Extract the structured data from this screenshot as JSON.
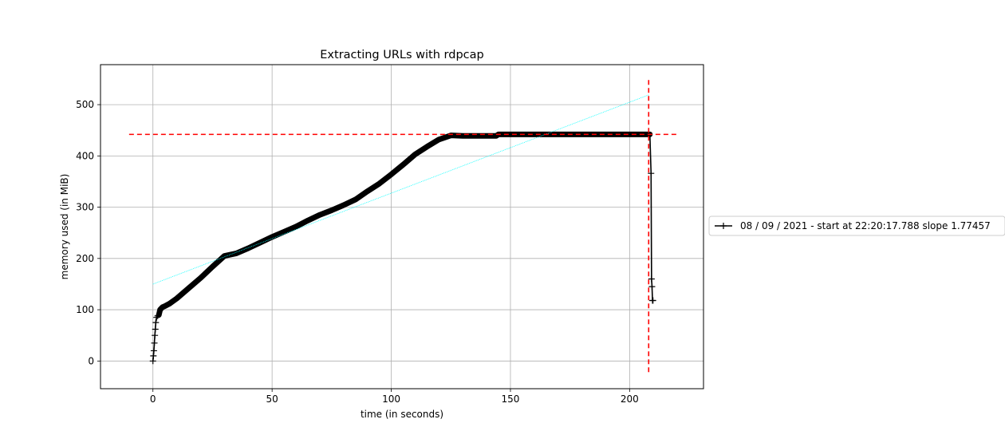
{
  "chart_data": {
    "type": "line",
    "title": "Extracting URLs with rdpcap",
    "xlabel": "time (in seconds)",
    "ylabel": "memory used (in MiB)",
    "xlim": [
      -22,
      231
    ],
    "ylim": [
      -54,
      578
    ],
    "xticks": [
      0,
      50,
      100,
      150,
      200
    ],
    "yticks": [
      0,
      100,
      200,
      300,
      400,
      500
    ],
    "grid": true,
    "legend_position": "center-right, outside plot",
    "series": [
      {
        "name": "08 / 09 / 2021 - start at 22:20:17.788 slope 1.77457",
        "color": "#000000",
        "marker": "+",
        "x": [
          0,
          0.2,
          0.4,
          0.6,
          0.8,
          1.0,
          1.2,
          1.5,
          2,
          2.5,
          3,
          4,
          5,
          7,
          10,
          15,
          20,
          25,
          30,
          35,
          40,
          45,
          50,
          55,
          60,
          65,
          70,
          75,
          80,
          85,
          90,
          95,
          100,
          105,
          110,
          115,
          120,
          125,
          130,
          135,
          140,
          144,
          145,
          150,
          160,
          170,
          180,
          190,
          200,
          205,
          208.5,
          209,
          209.2,
          209.4,
          209.6,
          209.8
        ],
        "y": [
          0,
          10,
          20,
          35,
          50,
          62,
          75,
          85,
          88,
          90,
          100,
          105,
          107,
          112,
          122,
          142,
          162,
          184,
          205,
          210,
          220,
          231,
          242,
          252,
          262,
          274,
          285,
          294,
          304,
          315,
          331,
          346,
          364,
          383,
          403,
          418,
          432,
          440,
          439,
          439,
          439,
          439,
          442,
          442,
          442,
          442,
          442,
          442,
          442,
          442,
          442,
          366,
          160,
          145,
          118,
          118
        ]
      },
      {
        "name": "",
        "color": "#00ffff",
        "style": "dotted",
        "x": [
          0,
          208
        ],
        "y": [
          150,
          519
        ]
      }
    ],
    "annotations": [
      {
        "type": "hline",
        "y": 442,
        "x_range": [
          -10,
          220
        ],
        "color": "#ff0000",
        "style": "dashed"
      },
      {
        "type": "vline",
        "x": 208,
        "y_range": [
          -25,
          548
        ],
        "color": "#ff0000",
        "style": "dashed"
      }
    ]
  }
}
